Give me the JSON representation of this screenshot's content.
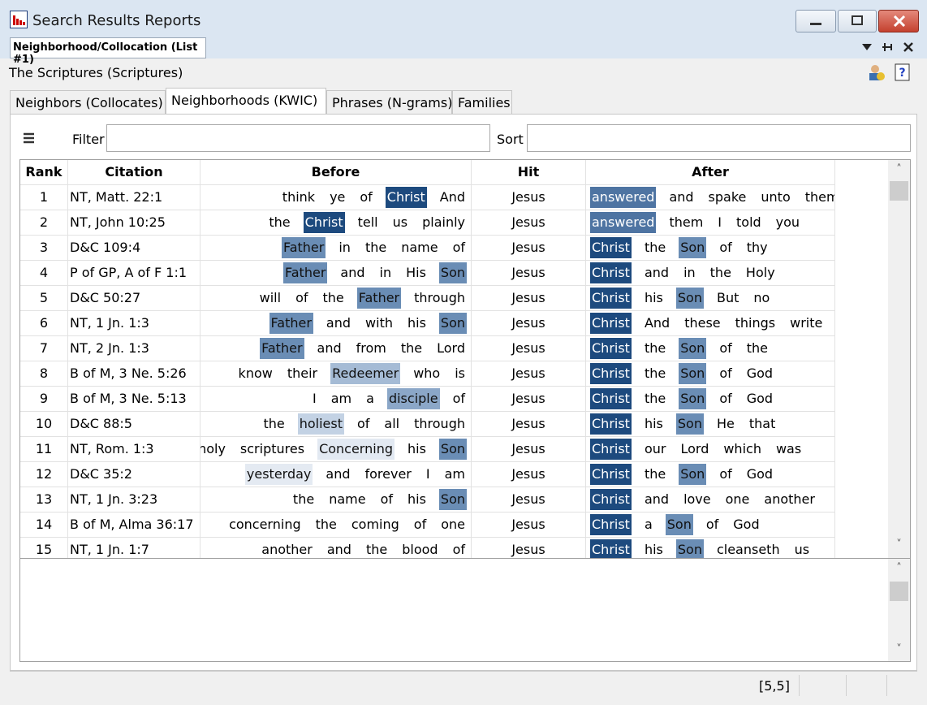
{
  "window": {
    "title": "Search Results Reports"
  },
  "document_tab": "Neighborhood/Collocation (List #1)",
  "source": "The Scriptures (Scriptures)",
  "tabs": [
    "Neighbors (Collocates)",
    "Neighborhoods (KWIC)",
    "Phrases (N-grams)",
    "Families"
  ],
  "active_tab": 1,
  "toolbar": {
    "filter_label": "Filter",
    "sort_label": "Sort"
  },
  "table": {
    "columns": [
      "Rank",
      "Citation",
      "Before",
      "Hit",
      "After"
    ],
    "rows": [
      {
        "rank": "1",
        "citation": "NT, Matt. 22:1",
        "before": [
          "think",
          "ye",
          "of",
          {
            "text": "Christ",
            "color": "#1d4a7e"
          },
          "And"
        ],
        "hit": "Jesus",
        "after": [
          {
            "text": "answered",
            "color": "#4e74a2"
          },
          "and",
          "spake",
          "unto",
          "them"
        ]
      },
      {
        "rank": "2",
        "citation": "NT, John 10:25",
        "before": [
          "the",
          {
            "text": "Christ",
            "color": "#1d4a7e"
          },
          "tell",
          "us",
          "plainly"
        ],
        "hit": "Jesus",
        "after": [
          {
            "text": "answered",
            "color": "#4e74a2"
          },
          "them",
          "I",
          "told",
          "you"
        ]
      },
      {
        "rank": "3",
        "citation": "D&C 109:4",
        "before": [
          {
            "text": "Father",
            "color": "#6a8db5"
          },
          "in",
          "the",
          "name",
          "of"
        ],
        "hit": "Jesus",
        "after": [
          {
            "text": "Christ",
            "color": "#1d4a7e"
          },
          "the",
          {
            "text": "Son",
            "color": "#6a8db5"
          },
          "of",
          "thy"
        ]
      },
      {
        "rank": "4",
        "citation": "P of GP, A of F 1:1",
        "before": [
          {
            "text": "Father",
            "color": "#6a8db5"
          },
          "and",
          "in",
          "His",
          {
            "text": "Son",
            "color": "#6a8db5"
          }
        ],
        "hit": "Jesus",
        "after": [
          {
            "text": "Christ",
            "color": "#1d4a7e"
          },
          "and",
          "in",
          "the",
          "Holy"
        ]
      },
      {
        "rank": "5",
        "citation": "D&C 50:27",
        "before": [
          "will",
          "of",
          "the",
          {
            "text": "Father",
            "color": "#6a8db5"
          },
          "through"
        ],
        "hit": "Jesus",
        "after": [
          {
            "text": "Christ",
            "color": "#1d4a7e"
          },
          "his",
          {
            "text": "Son",
            "color": "#6a8db5"
          },
          "But",
          "no"
        ]
      },
      {
        "rank": "6",
        "citation": "NT, 1 Jn. 1:3",
        "before": [
          {
            "text": "Father",
            "color": "#6a8db5"
          },
          "and",
          "with",
          "his",
          {
            "text": "Son",
            "color": "#6a8db5"
          }
        ],
        "hit": "Jesus",
        "after": [
          {
            "text": "Christ",
            "color": "#1d4a7e"
          },
          "And",
          "these",
          "things",
          "write"
        ]
      },
      {
        "rank": "7",
        "citation": "NT, 2 Jn. 1:3",
        "before": [
          {
            "text": "Father",
            "color": "#6a8db5"
          },
          "and",
          "from",
          "the",
          "Lord"
        ],
        "hit": "Jesus",
        "after": [
          {
            "text": "Christ",
            "color": "#1d4a7e"
          },
          "the",
          {
            "text": "Son",
            "color": "#6a8db5"
          },
          "of",
          "the"
        ]
      },
      {
        "rank": "8",
        "citation": "B of M, 3 Ne. 5:26",
        "before": [
          "know",
          "their",
          {
            "text": "Redeemer",
            "color": "#a5bbd5"
          },
          "who",
          "is"
        ],
        "hit": "Jesus",
        "after": [
          {
            "text": "Christ",
            "color": "#1d4a7e"
          },
          "the",
          {
            "text": "Son",
            "color": "#6a8db5"
          },
          "of",
          "God"
        ]
      },
      {
        "rank": "9",
        "citation": "B of M, 3 Ne. 5:13",
        "before": [
          "I",
          "am",
          "a",
          {
            "text": "disciple",
            "color": "#8ba7c8"
          },
          "of"
        ],
        "hit": "Jesus",
        "after": [
          {
            "text": "Christ",
            "color": "#1d4a7e"
          },
          "the",
          {
            "text": "Son",
            "color": "#6a8db5"
          },
          "of",
          "God"
        ]
      },
      {
        "rank": "10",
        "citation": "D&C 88:5",
        "before": [
          "the",
          {
            "text": "holiest",
            "color": "#c3d2e4"
          },
          "of",
          "all",
          "through"
        ],
        "hit": "Jesus",
        "after": [
          {
            "text": "Christ",
            "color": "#1d4a7e"
          },
          "his",
          {
            "text": "Son",
            "color": "#6a8db5"
          },
          "He",
          "that"
        ]
      },
      {
        "rank": "11",
        "citation": "NT, Rom. 1:3",
        "before": [
          "holy",
          "scriptures",
          {
            "text": "Concerning",
            "color": "#e2e9f2"
          },
          "his",
          {
            "text": "Son",
            "color": "#6a8db5"
          }
        ],
        "hit": "Jesus",
        "after": [
          {
            "text": "Christ",
            "color": "#1d4a7e"
          },
          "our",
          "Lord",
          "which",
          "was"
        ]
      },
      {
        "rank": "12",
        "citation": "D&C 35:2",
        "before": [
          {
            "text": "yesterday",
            "color": "#e4eaf2"
          },
          "and",
          "forever",
          "I",
          "am"
        ],
        "hit": "Jesus",
        "after": [
          {
            "text": "Christ",
            "color": "#1d4a7e"
          },
          "the",
          {
            "text": "Son",
            "color": "#6a8db5"
          },
          "of",
          "God"
        ]
      },
      {
        "rank": "13",
        "citation": "NT, 1 Jn. 3:23",
        "before": [
          "the",
          "name",
          "of",
          "his",
          {
            "text": "Son",
            "color": "#6a8db5"
          }
        ],
        "hit": "Jesus",
        "after": [
          {
            "text": "Christ",
            "color": "#1d4a7e"
          },
          "and",
          "love",
          "one",
          "another"
        ]
      },
      {
        "rank": "14",
        "citation": "B of M, Alma 36:17",
        "before": [
          "concerning",
          "the",
          "coming",
          "of",
          "one"
        ],
        "hit": "Jesus",
        "after": [
          {
            "text": "Christ",
            "color": "#1d4a7e"
          },
          "a",
          {
            "text": "Son",
            "color": "#6a8db5"
          },
          "of",
          "God"
        ]
      },
      {
        "rank": "15",
        "citation": "NT, 1 Jn. 1:7",
        "before": [
          "another",
          "and",
          "the",
          "blood",
          "of"
        ],
        "hit": "Jesus",
        "after": [
          {
            "text": "Christ",
            "color": "#1d4a7e"
          },
          "his",
          {
            "text": "Son",
            "color": "#6a8db5"
          },
          "cleanseth",
          "us"
        ]
      }
    ]
  },
  "status": "[5,5]"
}
